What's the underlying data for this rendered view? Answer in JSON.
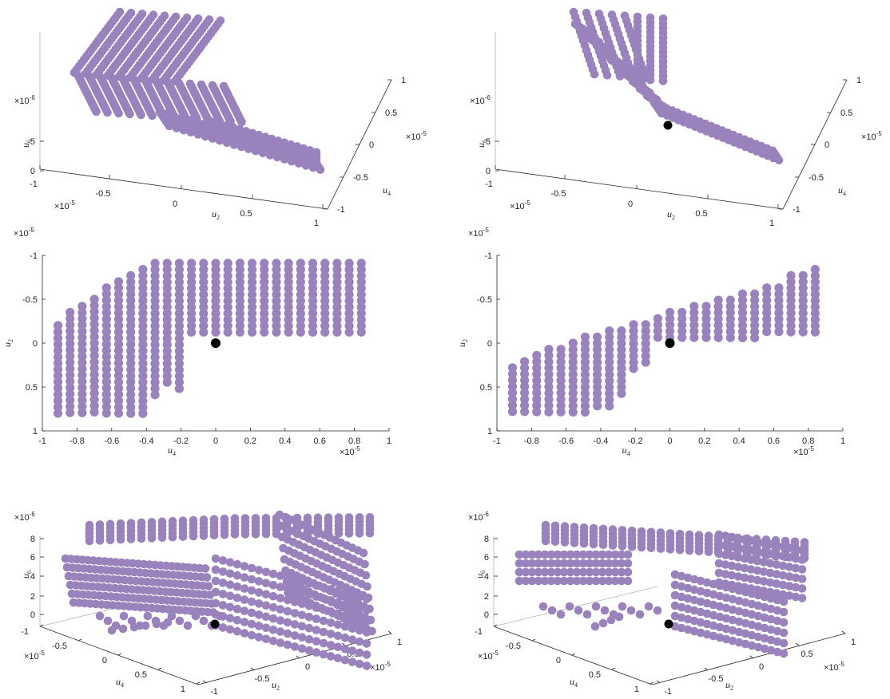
{
  "chart_data": [
    {
      "type": "scatter",
      "view": "3d",
      "panel": "top-left",
      "xlabel": "u2",
      "ylabel": "u4",
      "zlabel": "u6",
      "x_exponent": "×10-5",
      "y_exponent": "×10-5",
      "z_exponent": "×10-6",
      "x_ticks": [
        "-1",
        "-0.5",
        "0",
        "0.5",
        "1"
      ],
      "y_ticks": [
        "-1",
        "-0.5",
        "0",
        "0.5",
        "1"
      ],
      "z_ticks": [
        "0",
        "5"
      ],
      "colors": {
        "points": "#9a82bd",
        "marker": "#000000"
      },
      "marker_point": null
    },
    {
      "type": "scatter",
      "view": "3d",
      "panel": "top-right",
      "xlabel": "u2",
      "ylabel": "u4",
      "zlabel": "u6",
      "x_exponent": "×10-5",
      "y_exponent": "×10-5",
      "z_exponent": "×10-6",
      "x_ticks": [
        "-1",
        "-0.5",
        "0",
        "0.5",
        "1"
      ],
      "y_ticks": [
        "-1",
        "-0.5",
        "0",
        "0.5",
        "1"
      ],
      "z_ticks": [
        "0",
        "5"
      ],
      "colors": {
        "points": "#9a82bd",
        "marker": "#000000"
      },
      "marker_point": {
        "u2": 0,
        "u4": 0,
        "u6": 0
      }
    },
    {
      "type": "scatter",
      "view": "2d",
      "panel": "middle-left",
      "xlabel": "u4",
      "ylabel": "u2",
      "x_exponent": "×10-5",
      "y_exponent": "×10-5",
      "xlim": [
        -1,
        1
      ],
      "ylim": [
        -1,
        1
      ],
      "y_reversed": true,
      "x_ticks": [
        "-1",
        "-0.8",
        "-0.6",
        "-0.4",
        "-0.2",
        "0",
        "0.2",
        "0.4",
        "0.6",
        "0.8",
        "1"
      ],
      "y_ticks": [
        "-1",
        "-0.5",
        "0",
        "0.5",
        "1"
      ],
      "grid_step": 0.0714,
      "columns": [
        {
          "x": -0.91,
          "y_min": -0.2,
          "y_max": 0.85
        },
        {
          "x": -0.84,
          "y_min": -0.35,
          "y_max": 0.85
        },
        {
          "x": -0.77,
          "y_min": -0.42,
          "y_max": 0.85
        },
        {
          "x": -0.7,
          "y_min": -0.5,
          "y_max": 0.85
        },
        {
          "x": -0.63,
          "y_min": -0.63,
          "y_max": 0.85
        },
        {
          "x": -0.56,
          "y_min": -0.7,
          "y_max": 0.85
        },
        {
          "x": -0.49,
          "y_min": -0.77,
          "y_max": 0.85
        },
        {
          "x": -0.42,
          "y_min": -0.84,
          "y_max": 0.85
        },
        {
          "x": -0.35,
          "y_min": -0.91,
          "y_max": 0.63
        },
        {
          "x": -0.28,
          "y_min": -0.91,
          "y_max": 0.49
        },
        {
          "x": -0.21,
          "y_min": -0.91,
          "y_max": 0.56
        },
        {
          "x": -0.14,
          "y_min": -0.91,
          "y_max": -0.06
        },
        {
          "x": -0.07,
          "y_min": -0.91,
          "y_max": -0.06
        },
        {
          "x": 0.0,
          "y_min": -0.91,
          "y_max": -0.06
        },
        {
          "x": 0.07,
          "y_min": -0.91,
          "y_max": -0.06
        },
        {
          "x": 0.14,
          "y_min": -0.91,
          "y_max": -0.06
        },
        {
          "x": 0.21,
          "y_min": -0.91,
          "y_max": -0.06
        },
        {
          "x": 0.28,
          "y_min": -0.91,
          "y_max": -0.06
        },
        {
          "x": 0.35,
          "y_min": -0.91,
          "y_max": -0.06
        },
        {
          "x": 0.42,
          "y_min": -0.91,
          "y_max": -0.06
        },
        {
          "x": 0.49,
          "y_min": -0.91,
          "y_max": -0.06
        },
        {
          "x": 0.56,
          "y_min": -0.91,
          "y_max": -0.06
        },
        {
          "x": 0.63,
          "y_min": -0.91,
          "y_max": -0.06
        },
        {
          "x": 0.7,
          "y_min": -0.91,
          "y_max": -0.06
        },
        {
          "x": 0.77,
          "y_min": -0.91,
          "y_max": -0.06
        },
        {
          "x": 0.84,
          "y_min": -0.91,
          "y_max": -0.06
        }
      ],
      "marker_point": {
        "x": 0.0,
        "y": 0.0
      },
      "colors": {
        "points": "#9a82bd",
        "marker": "#000000"
      }
    },
    {
      "type": "scatter",
      "view": "2d",
      "panel": "middle-right",
      "xlabel": "u4",
      "ylabel": "u2",
      "x_exponent": "×10-5",
      "y_exponent": "×10-5",
      "xlim": [
        -1,
        1
      ],
      "ylim": [
        -1,
        1
      ],
      "y_reversed": true,
      "x_ticks": [
        "-1",
        "-0.8",
        "-0.6",
        "-0.4",
        "-0.2",
        "0",
        "0.2",
        "0.4",
        "0.6",
        "0.8",
        "1"
      ],
      "y_ticks": [
        "-1",
        "-0.5",
        "0",
        "0.5",
        "1"
      ],
      "grid_step": 0.0714,
      "columns": [
        {
          "x": -0.91,
          "y_min": 0.28,
          "y_max": 0.85
        },
        {
          "x": -0.84,
          "y_min": 0.21,
          "y_max": 0.85
        },
        {
          "x": -0.77,
          "y_min": 0.14,
          "y_max": 0.85
        },
        {
          "x": -0.7,
          "y_min": 0.07,
          "y_max": 0.85
        },
        {
          "x": -0.63,
          "y_min": 0.07,
          "y_max": 0.85
        },
        {
          "x": -0.56,
          "y_min": 0.0,
          "y_max": 0.85
        },
        {
          "x": -0.49,
          "y_min": -0.07,
          "y_max": 0.85
        },
        {
          "x": -0.42,
          "y_min": -0.07,
          "y_max": 0.78
        },
        {
          "x": -0.35,
          "y_min": -0.14,
          "y_max": 0.78
        },
        {
          "x": -0.28,
          "y_min": -0.14,
          "y_max": 0.63
        },
        {
          "x": -0.21,
          "y_min": -0.21,
          "y_max": 0.35
        },
        {
          "x": -0.14,
          "y_min": -0.21,
          "y_max": 0.28
        },
        {
          "x": -0.07,
          "y_min": -0.28,
          "y_max": -0.06
        },
        {
          "x": 0.0,
          "y_min": -0.35,
          "y_max": -0.06
        },
        {
          "x": 0.07,
          "y_min": -0.35,
          "y_max": -0.06
        },
        {
          "x": 0.14,
          "y_min": -0.42,
          "y_max": -0.06
        },
        {
          "x": 0.21,
          "y_min": -0.42,
          "y_max": -0.06
        },
        {
          "x": 0.28,
          "y_min": -0.49,
          "y_max": -0.06
        },
        {
          "x": 0.35,
          "y_min": -0.49,
          "y_max": -0.06
        },
        {
          "x": 0.42,
          "y_min": -0.56,
          "y_max": -0.06
        },
        {
          "x": 0.49,
          "y_min": -0.56,
          "y_max": -0.06
        },
        {
          "x": 0.56,
          "y_min": -0.63,
          "y_max": -0.06
        },
        {
          "x": 0.63,
          "y_min": -0.63,
          "y_max": -0.06
        },
        {
          "x": 0.7,
          "y_min": -0.77,
          "y_max": -0.06
        },
        {
          "x": 0.77,
          "y_min": -0.77,
          "y_max": -0.06
        },
        {
          "x": 0.84,
          "y_min": -0.84,
          "y_max": -0.06
        }
      ],
      "marker_point": {
        "x": 0.0,
        "y": 0.0
      },
      "colors": {
        "points": "#9a82bd",
        "marker": "#000000"
      }
    },
    {
      "type": "scatter",
      "view": "3d",
      "panel": "bottom-left",
      "xlabel": "u2",
      "ylabel": "u4",
      "zlabel": "u6",
      "x_exponent": "×10-5",
      "y_exponent": "×10-5",
      "z_exponent": "×10-6",
      "x_ticks": [
        "1",
        "0.5",
        "0",
        "-0.5",
        "-1"
      ],
      "y_ticks": [
        "-1",
        "-0.5",
        "0",
        "0.5",
        "1"
      ],
      "z_ticks": [
        "0",
        "2",
        "4",
        "6",
        "8"
      ],
      "colors": {
        "points": "#9a82bd",
        "marker": "#000000"
      },
      "marker_point": {
        "u2": 0,
        "u4": 0,
        "u6": 0
      }
    },
    {
      "type": "scatter",
      "view": "3d",
      "panel": "bottom-right",
      "xlabel": "u2",
      "ylabel": "u4",
      "zlabel": "u6",
      "x_exponent": "×10-5",
      "y_exponent": "×10-5",
      "z_exponent": "×10-6",
      "x_ticks": [
        "1",
        "0.5",
        "0",
        "-0.5",
        "-1"
      ],
      "y_ticks": [
        "-1",
        "-0.5",
        "0",
        "0.5",
        "1"
      ],
      "z_ticks": [
        "0",
        "2",
        "4",
        "6",
        "8"
      ],
      "colors": {
        "points": "#9a82bd",
        "marker": "#000000"
      },
      "marker_point": {
        "u2": 0,
        "u4": 0,
        "u6": 0
      }
    }
  ]
}
